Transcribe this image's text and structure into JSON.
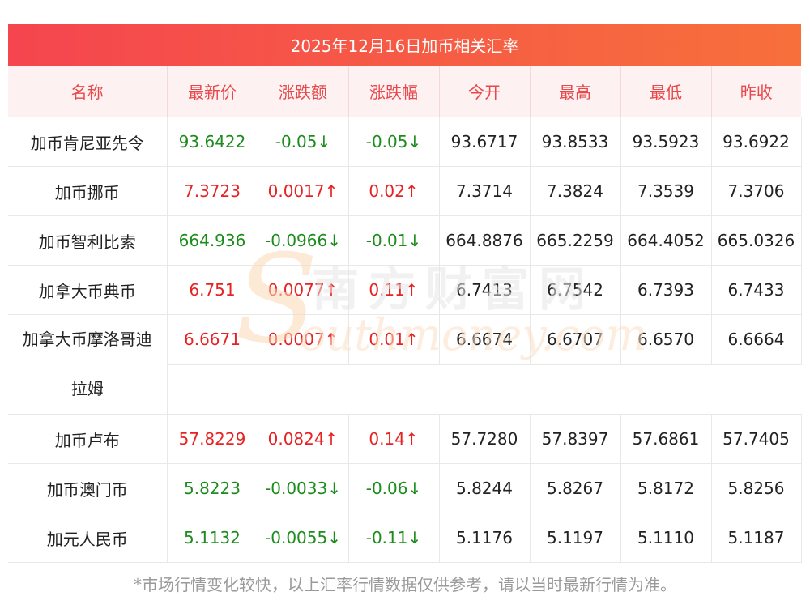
{
  "title": "2025年12月16日加币相关汇率",
  "headers": [
    "名称",
    "最新价",
    "涨跌额",
    "涨跌幅",
    "今开",
    "最高",
    "最低",
    "昨收"
  ],
  "rows": [
    {
      "name": "加币肯尼亚先令",
      "latest": "93.6422",
      "change": "-0.05↓",
      "pct": "-0.05↓",
      "open": "93.6717",
      "high": "93.8533",
      "low": "93.5923",
      "prev": "93.6922",
      "direction": "down"
    },
    {
      "name": "加币挪币",
      "latest": "7.3723",
      "change": "0.0017↑",
      "pct": "0.02↑",
      "open": "7.3714",
      "high": "7.3824",
      "low": "7.3539",
      "prev": "7.3706",
      "direction": "up"
    },
    {
      "name": "加币智利比索",
      "latest": "664.936",
      "change": "-0.0966↓",
      "pct": "-0.01↓",
      "open": "664.8876",
      "high": "665.2259",
      "low": "664.4052",
      "prev": "665.0326",
      "direction": "down"
    },
    {
      "name": "加拿大币典币",
      "latest": "6.751",
      "change": "0.0077↑",
      "pct": "0.11↑",
      "open": "6.7413",
      "high": "6.7542",
      "low": "6.7393",
      "prev": "6.7433",
      "direction": "up"
    },
    {
      "name": "加拿大币摩洛哥迪拉姆",
      "latest": "6.6671",
      "change": "0.0007↑",
      "pct": "0.01↑",
      "open": "6.6674",
      "high": "6.6707",
      "low": "6.6570",
      "prev": "6.6664",
      "direction": "up"
    },
    {
      "name": "加币卢布",
      "latest": "57.8229",
      "change": "0.0824↑",
      "pct": "0.14↑",
      "open": "57.7280",
      "high": "57.8397",
      "low": "57.6861",
      "prev": "57.7405",
      "direction": "up"
    },
    {
      "name": "加币澳门币",
      "latest": "5.8223",
      "change": "-0.0033↓",
      "pct": "-0.06↓",
      "open": "5.8244",
      "high": "5.8267",
      "low": "5.8172",
      "prev": "5.8256",
      "direction": "down"
    },
    {
      "name": "加元人民币",
      "latest": "5.1132",
      "change": "-0.0055↓",
      "pct": "-0.11↓",
      "open": "5.1176",
      "high": "5.1197",
      "low": "5.1110",
      "prev": "5.1187",
      "direction": "down"
    }
  ],
  "watermark": {
    "cn": "南方财富网",
    "en": "outhmoney.com",
    "s": "S"
  },
  "footnote": "*市场行情变化较快，以上汇率行情数据仅供参考，请以当时最新行情为准。",
  "colors": {
    "up": "#e62222",
    "down": "#1c8c1c",
    "header_text": "#e8484a",
    "title_gradient_start": "#f5454f",
    "title_gradient_end": "#f7703b"
  }
}
